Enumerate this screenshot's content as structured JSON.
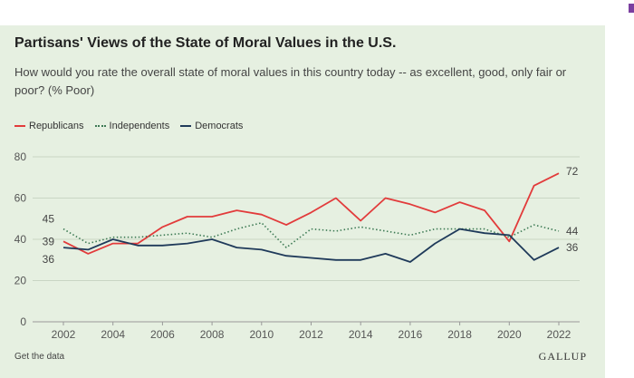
{
  "header": {
    "title": "Partisans' Views of the State of Moral Values in the U.S.",
    "subtitle": "How would you rate the overall state of moral values in this country today -- as excellent, good, only fair or poor? (% Poor)"
  },
  "legend": {
    "republicans": "Republicans",
    "independents": "Independents",
    "democrats": "Democrats"
  },
  "footer": {
    "get_data": "Get the data",
    "brand": "GALLUP"
  },
  "colors": {
    "republicans": "#e23b3b",
    "independents": "#3d7a54",
    "democrats": "#1f3a5a",
    "panel": "#e6f0e1"
  },
  "chart_data": {
    "type": "line",
    "title": "Partisans' Views of the State of Moral Values in the U.S.",
    "xlabel": "",
    "ylabel": "% Poor",
    "x": [
      2002,
      2003,
      2004,
      2005,
      2006,
      2007,
      2008,
      2009,
      2010,
      2011,
      2012,
      2013,
      2014,
      2015,
      2016,
      2017,
      2018,
      2019,
      2020,
      2021,
      2022
    ],
    "xticks": [
      "2002",
      "2004",
      "2006",
      "2008",
      "2010",
      "2012",
      "2014",
      "2016",
      "2018",
      "2020",
      "2022"
    ],
    "yticks": [
      "0",
      "20",
      "40",
      "60",
      "80"
    ],
    "xlim": [
      2002,
      2022
    ],
    "ylim": [
      0,
      80
    ],
    "series": [
      {
        "name": "Republicans",
        "style": "solid",
        "values": [
          39,
          33,
          38,
          38,
          46,
          51,
          51,
          54,
          52,
          47,
          53,
          60,
          49,
          60,
          57,
          53,
          58,
          54,
          39,
          66,
          72
        ]
      },
      {
        "name": "Independents",
        "style": "dotted",
        "values": [
          45,
          38,
          41,
          41,
          42,
          43,
          41,
          45,
          48,
          36,
          45,
          44,
          46,
          44,
          42,
          45,
          45,
          45,
          41,
          47,
          44
        ]
      },
      {
        "name": "Democrats",
        "style": "solid",
        "values": [
          36,
          35,
          40,
          37,
          37,
          38,
          40,
          36,
          35,
          32,
          31,
          30,
          30,
          33,
          29,
          38,
          45,
          43,
          42,
          30,
          36
        ]
      }
    ],
    "start_labels": [
      "45",
      "39",
      "36"
    ],
    "end_labels": [
      "72",
      "44",
      "36"
    ],
    "grid": true
  }
}
